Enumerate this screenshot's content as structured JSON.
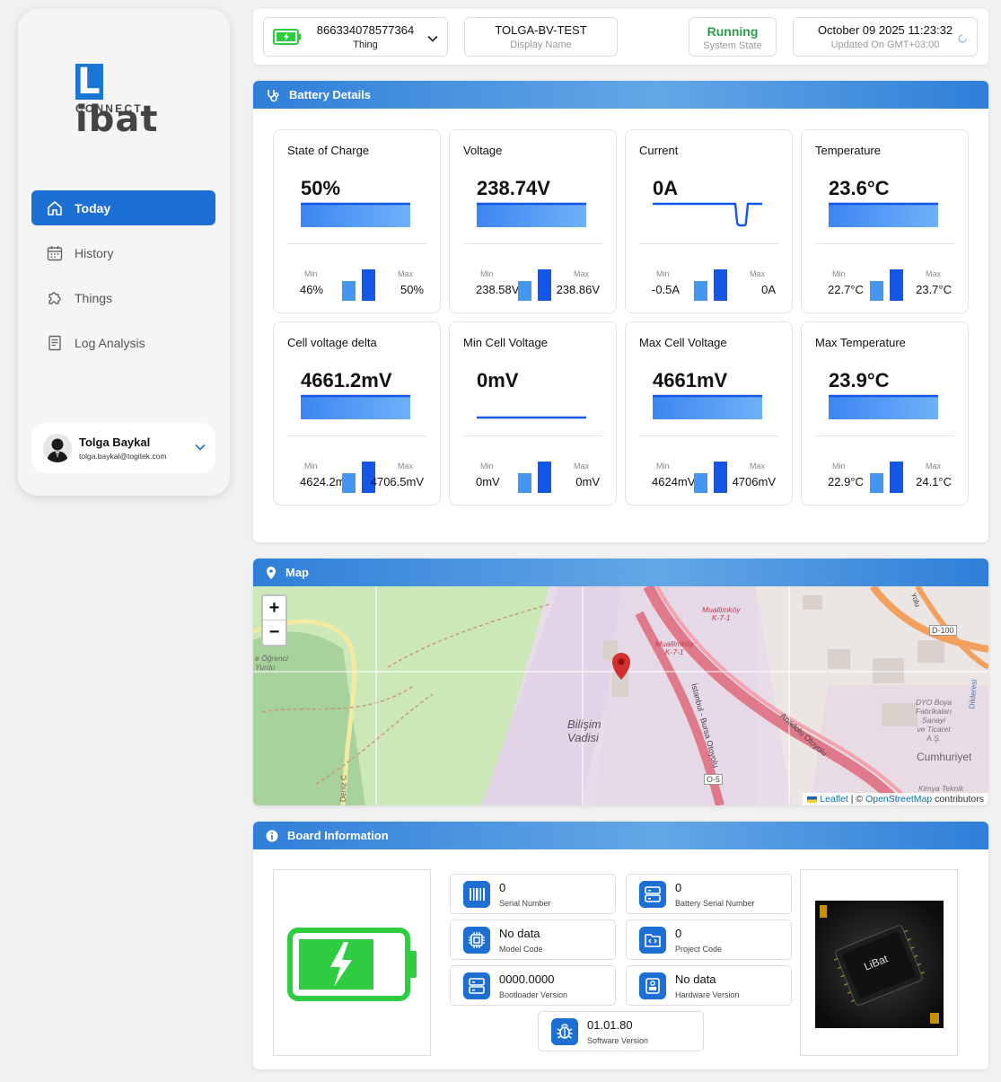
{
  "sidebar": {
    "logo_main": "Libat",
    "logo_sub": "CONNECT",
    "nav": [
      {
        "label": "Today",
        "icon": "home-icon",
        "active": true
      },
      {
        "label": "History",
        "icon": "calendar-icon",
        "active": false
      },
      {
        "label": "Things",
        "icon": "puzzle-icon",
        "active": false
      },
      {
        "label": "Log Analysis",
        "icon": "document-icon",
        "active": false
      }
    ],
    "user": {
      "name": "Tolga Baykal",
      "email": "tolga.baykal@togitek.com"
    }
  },
  "topbar": {
    "thing": {
      "value": "866334078577364",
      "label": "Thing"
    },
    "display_name": {
      "value": "TOLGA-BV-TEST",
      "label": "Display Name"
    },
    "system_state": {
      "value": "Running",
      "label": "System State"
    },
    "updated": {
      "value": "October 09 2025 11:23:32",
      "label": "Updated On GMT+03:00"
    }
  },
  "battery": {
    "title": "Battery Details",
    "min_label": "Min",
    "max_label": "Max",
    "metrics": [
      {
        "title": "State of Charge",
        "value": "50%",
        "min": "46%",
        "max": "50%",
        "min_level": 0.64,
        "max_level": 1.0
      },
      {
        "title": "Voltage",
        "value": "238.74V",
        "min": "238.58V",
        "max": "238.86V",
        "min_level": 0.64,
        "max_level": 1.0
      },
      {
        "title": "Current",
        "value": "0A",
        "min": "-0.5A",
        "max": "0A",
        "min_level": 0.64,
        "max_level": 1.0
      },
      {
        "title": "Temperature",
        "value": "23.6°C",
        "min": "22.7°C",
        "max": "23.7°C",
        "min_level": 0.64,
        "max_level": 1.0
      },
      {
        "title": "Cell voltage delta",
        "value": "4661.2mV",
        "min": "4624.2mV",
        "max": "4706.5mV",
        "min_level": 0.64,
        "max_level": 1.0
      },
      {
        "title": "Min Cell Voltage",
        "value": "0mV",
        "min": "0mV",
        "max": "0mV",
        "min_level": 0.64,
        "max_level": 1.0
      },
      {
        "title": "Max Cell Voltage",
        "value": "4661mV",
        "min": "4624mV",
        "max": "4706mV",
        "min_level": 0.64,
        "max_level": 1.0
      },
      {
        "title": "Max Temperature",
        "value": "23.9°C",
        "min": "22.9°C",
        "max": "24.1°C",
        "min_level": 0.64,
        "max_level": 1.0
      }
    ]
  },
  "map": {
    "title": "Map",
    "zoom_in": "+",
    "zoom_out": "−",
    "labels": {
      "valley": "Bilişim\nVadisi",
      "district": "Cumhuriyet",
      "road1": "İstanbul - Bursa Otoyolu",
      "road2": "Anadolu Otoyolu",
      "jn1": "Muallimköy\nK-7-1",
      "jn2": "Muallimköy\nK-7-1",
      "road_d100": "D-100",
      "road_o5": "O-5",
      "dyo": "DYO Boya\nFabrikaları\nSanayi\nve Ticaret\nA.Ş.",
      "kimya": "Kimya Teknik",
      "yurdu": "e Öğrenci\nYurdu",
      "deniz": "Deniz C",
      "dilderesi": "Dilderesi",
      "yolu": "Yolu"
    },
    "attribution": {
      "leaflet": "Leaflet",
      "sep": " | © ",
      "osm": "OpenStreetMap",
      "tail": " contributors"
    }
  },
  "board": {
    "title": "Board Information",
    "items": [
      {
        "value": "0",
        "label": "Serial Number",
        "icon": "barcode-icon"
      },
      {
        "value": "0",
        "label": "Battery Serial Number",
        "icon": "server-icon"
      },
      {
        "value": "No data",
        "label": "Model Code",
        "icon": "chip-icon"
      },
      {
        "value": "0",
        "label": "Project Code",
        "icon": "folder-code-icon"
      },
      {
        "value": "0000.0000",
        "label": "Bootloader Version",
        "icon": "server-icon"
      },
      {
        "value": "No data",
        "label": "Hardware Version",
        "icon": "hardware-icon"
      },
      {
        "value": "01.01.80",
        "label": "Software Version",
        "icon": "bug-icon"
      }
    ],
    "chip_label": "LiBat",
    "colors": {
      "battery_green": "#2ecc40",
      "accent": "#1e6fd3"
    }
  },
  "colors": {
    "running": "#2e9b4e",
    "accent_blue": "#1e6fd3"
  }
}
